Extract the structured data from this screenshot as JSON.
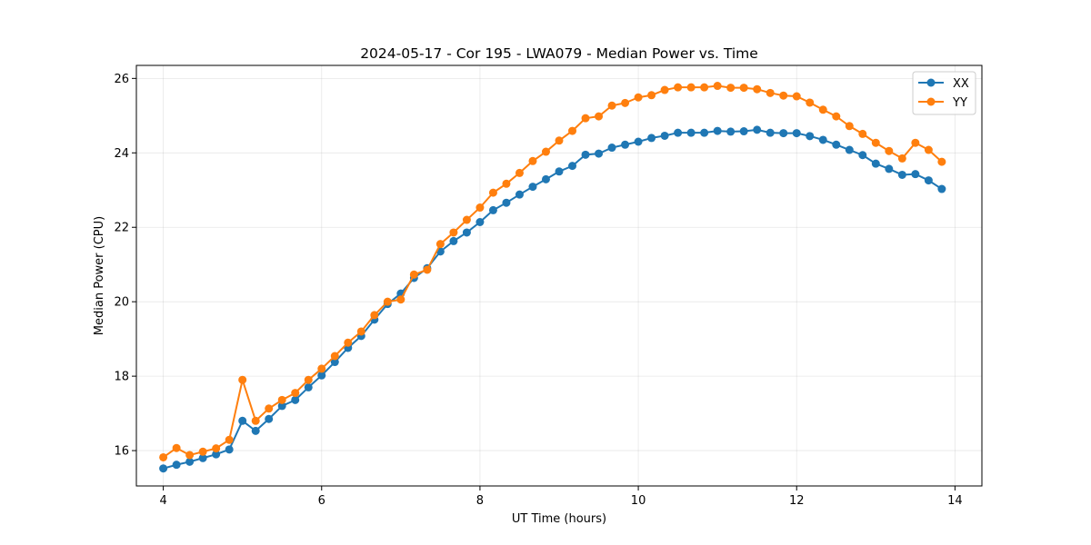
{
  "chart_data": {
    "type": "line",
    "title": "2024-05-17 - Cor 195 - LWA079 - Median Power vs. Time",
    "xlabel": "UT Time (hours)",
    "ylabel": "Median Power (CPU)",
    "xlim": [
      3.66,
      14.34
    ],
    "ylim": [
      15.05,
      26.35
    ],
    "xticks": [
      4,
      6,
      8,
      10,
      12,
      14
    ],
    "yticks": [
      16,
      18,
      20,
      22,
      24,
      26
    ],
    "grid": true,
    "legend_position": "top-right",
    "x": [
      4.0,
      4.1667,
      4.3333,
      4.5,
      4.6667,
      4.8333,
      5.0,
      5.1667,
      5.3333,
      5.5,
      5.6667,
      5.8333,
      6.0,
      6.1667,
      6.3333,
      6.5,
      6.6667,
      6.8333,
      7.0,
      7.1667,
      7.3333,
      7.5,
      7.6667,
      7.8333,
      8.0,
      8.1667,
      8.3333,
      8.5,
      8.6667,
      8.8333,
      9.0,
      9.1667,
      9.3333,
      9.5,
      9.6667,
      9.8333,
      10.0,
      10.1667,
      10.3333,
      10.5,
      10.6667,
      10.8333,
      11.0,
      11.1667,
      11.3333,
      11.5,
      11.6667,
      11.8333,
      12.0,
      12.1667,
      12.3333,
      12.5,
      12.6667,
      12.8333,
      13.0,
      13.1667,
      13.3333,
      13.5,
      13.6667,
      13.8333
    ],
    "series": [
      {
        "name": "XX",
        "color": "#1f77b4",
        "values": [
          15.52,
          15.62,
          15.7,
          15.8,
          15.9,
          16.03,
          16.8,
          16.53,
          16.85,
          17.2,
          17.36,
          17.7,
          18.02,
          18.38,
          18.76,
          19.08,
          19.52,
          19.94,
          20.22,
          20.64,
          20.9,
          21.35,
          21.63,
          21.86,
          22.14,
          22.46,
          22.66,
          22.88,
          23.09,
          23.29,
          23.5,
          23.65,
          23.95,
          23.98,
          24.14,
          24.22,
          24.3,
          24.4,
          24.46,
          24.54,
          24.54,
          24.54,
          24.59,
          24.57,
          24.58,
          24.62,
          24.54,
          24.53,
          24.53,
          24.45,
          24.35,
          24.22,
          24.08,
          23.94,
          23.71,
          23.57,
          23.41,
          23.43,
          23.26,
          23.03
        ]
      },
      {
        "name": "YY",
        "color": "#ff7f0e",
        "values": [
          15.82,
          16.07,
          15.88,
          15.97,
          16.06,
          16.29,
          17.9,
          16.8,
          17.13,
          17.36,
          17.55,
          17.9,
          18.2,
          18.54,
          18.9,
          19.2,
          19.64,
          20.0,
          20.06,
          20.73,
          20.86,
          21.55,
          21.86,
          22.2,
          22.53,
          22.93,
          23.17,
          23.46,
          23.78,
          24.03,
          24.33,
          24.59,
          24.93,
          24.98,
          25.27,
          25.34,
          25.49,
          25.55,
          25.69,
          25.76,
          25.76,
          25.76,
          25.8,
          25.75,
          25.75,
          25.71,
          25.61,
          25.54,
          25.52,
          25.35,
          25.16,
          24.98,
          24.72,
          24.51,
          24.27,
          24.05,
          23.85,
          24.27,
          24.08,
          23.76
        ]
      }
    ]
  }
}
